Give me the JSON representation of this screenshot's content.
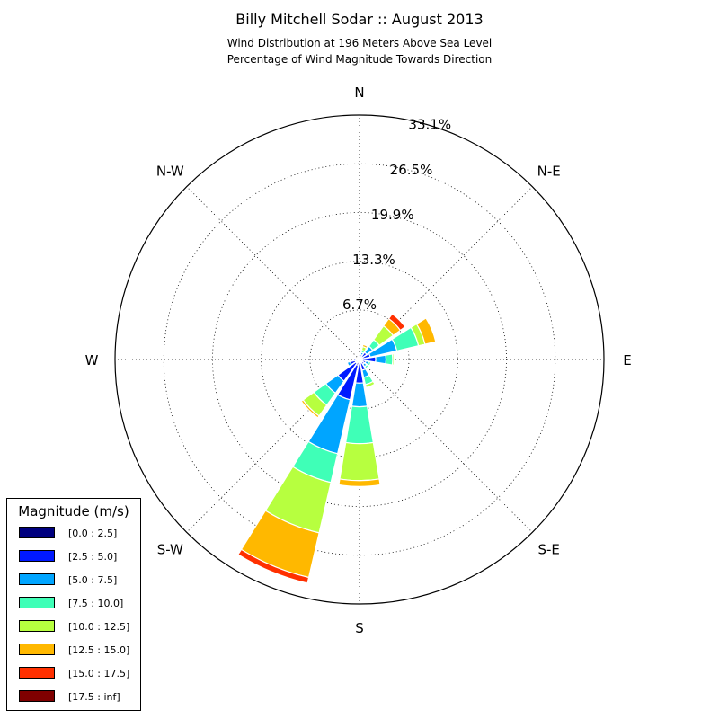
{
  "header": {
    "title": "Billy Mitchell Sodar :: August 2013",
    "subtitle_line1": "Wind Distribution at 196 Meters Above Sea Level",
    "subtitle_line2": "Percentage of Wind Magnitude Towards Direction"
  },
  "chart_data": {
    "type": "windrose",
    "radial_max": 33.1,
    "radial_tick_labels": [
      "6.7%",
      "13.3%",
      "19.9%",
      "26.5%",
      "33.1%"
    ],
    "radial_ticks": [
      6.7,
      13.3,
      19.9,
      26.5,
      33.1
    ],
    "direction_labels": [
      "N",
      "N-E",
      "E",
      "S-E",
      "S",
      "S-W",
      "W",
      "N-W"
    ],
    "grid": true,
    "legend_title": "Magnitude (m/s)",
    "legend_position": "bottom-left",
    "bins": [
      {
        "label": "[0.0 : 2.5]",
        "color": "#00007f"
      },
      {
        "label": "[2.5 : 5.0]",
        "color": "#0019ff"
      },
      {
        "label": "[5.0 : 7.5]",
        "color": "#00a5ff"
      },
      {
        "label": "[7.5 : 10.0]",
        "color": "#3fffb7"
      },
      {
        "label": "[10.0 : 12.5]",
        "color": "#b7ff3f"
      },
      {
        "label": "[12.5 : 15.0]",
        "color": "#ffb800"
      },
      {
        "label": "[15.0 : 17.5]",
        "color": "#ff3000"
      },
      {
        "label": "[17.5 : inf]",
        "color": "#7f0000"
      }
    ],
    "sectors": [
      {
        "direction_deg": 0,
        "cumulative": [
          0.3,
          0.6,
          0.6,
          0.6,
          0.6,
          0.6,
          0.6,
          0.6
        ]
      },
      {
        "direction_deg": 22.5,
        "cumulative": [
          0.3,
          0.7,
          1.0,
          1.3,
          1.8,
          2.1,
          2.2,
          2.2
        ]
      },
      {
        "direction_deg": 45,
        "cumulative": [
          0.4,
          1.2,
          2.2,
          3.3,
          5.6,
          6.8,
          7.6,
          7.6
        ]
      },
      {
        "direction_deg": 67.5,
        "cumulative": [
          0.4,
          1.5,
          5.2,
          8.2,
          9.1,
          10.6,
          10.6,
          10.6
        ]
      },
      {
        "direction_deg": 90,
        "cumulative": [
          0.4,
          2.2,
          3.6,
          4.5,
          4.7,
          4.7,
          4.7,
          4.7
        ]
      },
      {
        "direction_deg": 112.5,
        "cumulative": [
          0.3,
          0.9,
          1.3,
          1.6,
          1.7,
          1.7,
          1.7,
          1.7
        ]
      },
      {
        "direction_deg": 135,
        "cumulative": [
          0.3,
          0.8,
          1.2,
          1.5,
          1.6,
          1.6,
          1.6,
          1.6
        ]
      },
      {
        "direction_deg": 157.5,
        "cumulative": [
          0.5,
          1.5,
          2.5,
          3.5,
          3.9,
          3.9,
          3.9,
          3.9
        ]
      },
      {
        "direction_deg": 180,
        "cumulative": [
          0.6,
          3.2,
          6.4,
          11.4,
          16.4,
          17.2,
          17.2,
          17.2
        ]
      },
      {
        "direction_deg": 202.5,
        "cumulative": [
          0.8,
          5.6,
          13.1,
          17.1,
          24.1,
          30.3,
          31.1,
          31.1
        ]
      },
      {
        "direction_deg": 225,
        "cumulative": [
          0.6,
          3.6,
          5.6,
          7.6,
          9.4,
          9.7,
          9.7,
          9.7
        ]
      },
      {
        "direction_deg": 247.5,
        "cumulative": [
          0.6,
          1.3,
          1.7,
          1.7,
          1.7,
          1.7,
          1.7,
          1.7
        ]
      },
      {
        "direction_deg": 270,
        "cumulative": [
          0.5,
          0.8,
          0.8,
          0.8,
          0.8,
          0.8,
          0.8,
          0.8
        ]
      },
      {
        "direction_deg": 292.5,
        "cumulative": [
          0.3,
          0.4,
          0.4,
          0.4,
          0.4,
          0.4,
          0.4,
          0.4
        ]
      },
      {
        "direction_deg": 315,
        "cumulative": [
          0.3,
          0.4,
          0.4,
          0.4,
          0.4,
          0.4,
          0.4,
          0.4
        ]
      },
      {
        "direction_deg": 337.5,
        "cumulative": [
          0.3,
          0.4,
          0.4,
          0.4,
          0.4,
          0.4,
          0.4,
          0.4
        ]
      }
    ]
  }
}
